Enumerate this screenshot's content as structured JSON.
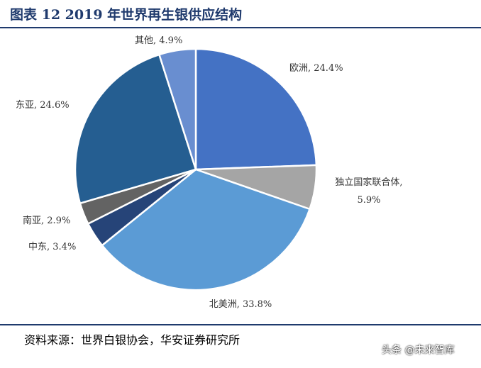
{
  "title": "图表 12 2019 年世界再生银供应结构",
  "source": "资料来源：世界白银协会，华安证券研究所",
  "watermark": "头条 @未来智库",
  "chart_data": {
    "type": "pie",
    "title": "图表 12 2019 年世界再生银供应结构",
    "unit": "%",
    "slices": [
      {
        "name": "欧洲",
        "value": 24.4,
        "label": "欧洲, 24.4%",
        "color": "#4472c4"
      },
      {
        "name": "独立国家联合体",
        "value": 5.9,
        "label_lines": [
          "独立国家联合体,",
          "5.9%"
        ],
        "color": "#a5a5a5"
      },
      {
        "name": "北美洲",
        "value": 33.8,
        "label": "北美洲, 33.8%",
        "color": "#5b9bd5"
      },
      {
        "name": "中东",
        "value": 3.4,
        "label": "中东, 3.4%",
        "color": "#264478"
      },
      {
        "name": "南亚",
        "value": 2.9,
        "label": "南亚, 2.9%",
        "color": "#636363"
      },
      {
        "name": "东亚",
        "value": 24.6,
        "label": "东亚, 24.6%",
        "color": "#255e91"
      },
      {
        "name": "其他",
        "value": 4.9,
        "label": "其他, 4.9%",
        "color": "#698ed0"
      }
    ]
  }
}
